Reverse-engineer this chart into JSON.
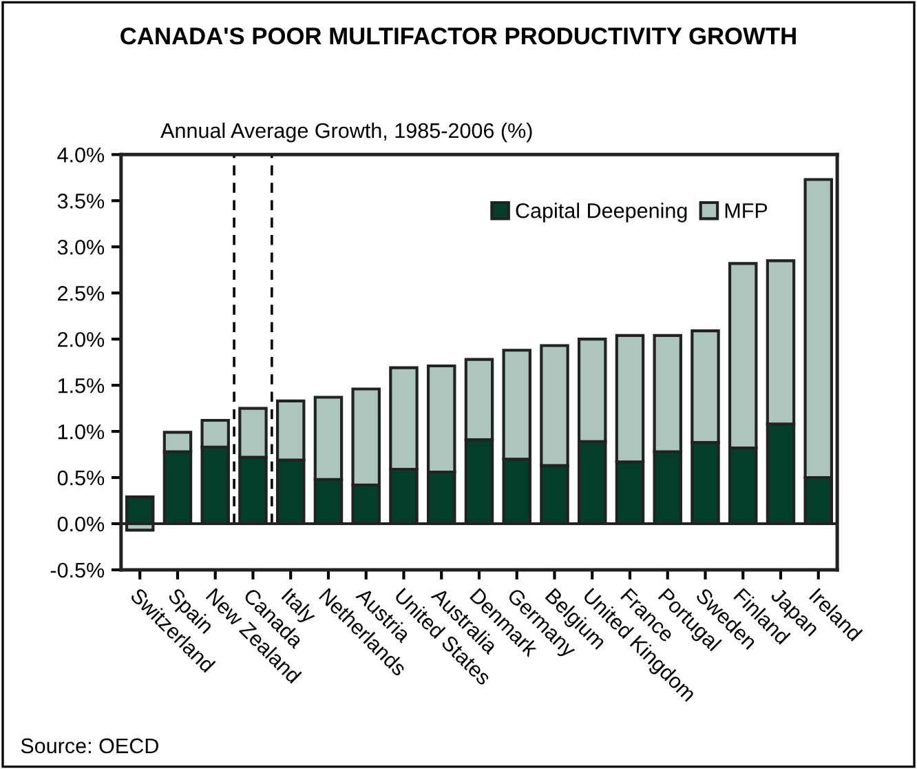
{
  "chart_data": {
    "type": "bar",
    "stacked": true,
    "title": "CANADA'S POOR MULTIFACTOR PRODUCTIVITY GROWTH",
    "subtitle": "Annual Average Growth, 1985-2006 (%)",
    "categories": [
      "Switzerland",
      "Spain",
      "New Zealand",
      "Canada",
      "Italy",
      "Netherlands",
      "Austria",
      "United States",
      "Australia",
      "Denmark",
      "Germany",
      "Belgium",
      "United Kingdom",
      "France",
      "Portugal",
      "Sweden",
      "Finland",
      "Japan",
      "Ireland"
    ],
    "series": [
      {
        "name": "Capital Deepening",
        "color": "#053d2b",
        "values": [
          0.29,
          0.78,
          0.83,
          0.72,
          0.69,
          0.48,
          0.42,
          0.59,
          0.56,
          0.91,
          0.7,
          0.63,
          0.89,
          0.67,
          0.78,
          0.88,
          0.82,
          1.08,
          0.5
        ]
      },
      {
        "name": "MFP",
        "color": "#adc6bd",
        "values": [
          -0.07,
          0.21,
          0.29,
          0.53,
          0.64,
          0.89,
          1.04,
          1.1,
          1.15,
          0.87,
          1.18,
          1.3,
          1.11,
          1.37,
          1.26,
          1.21,
          2.0,
          1.77,
          3.23
        ]
      }
    ],
    "ylim": [
      -0.5,
      4.0
    ],
    "yticks": [
      {
        "value": -0.5,
        "label": "-0.5%"
      },
      {
        "value": 0.0,
        "label": "0.0%"
      },
      {
        "value": 0.5,
        "label": "0.5%"
      },
      {
        "value": 1.0,
        "label": "1.0%"
      },
      {
        "value": 1.5,
        "label": "1.5%"
      },
      {
        "value": 2.0,
        "label": "2.0%"
      },
      {
        "value": 2.5,
        "label": "2.5%"
      },
      {
        "value": 3.0,
        "label": "3.0%"
      },
      {
        "value": 3.5,
        "label": "3.5%"
      },
      {
        "value": 4.0,
        "label": "4.0%"
      }
    ],
    "legend": "top right",
    "grid": false,
    "annotations": [
      "Source: OECD"
    ]
  }
}
